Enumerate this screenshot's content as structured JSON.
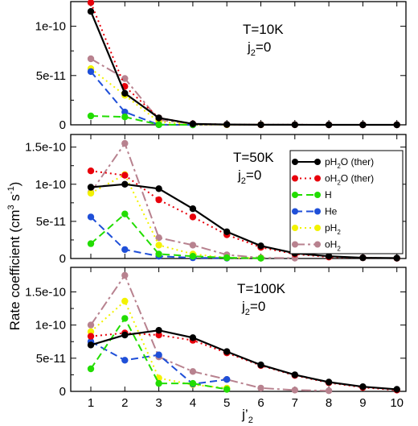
{
  "figure": {
    "ylabel": "Rate coefficient (cm³ s⁻¹)",
    "ylabel_parts": [
      "Rate coefficient (cm",
      "3",
      " s",
      "-1",
      ")"
    ],
    "xlabel_main": "j’",
    "xlabel_sub": "2",
    "legend": [
      {
        "main": "pH",
        "sub": "2",
        "rest": "O (ther)"
      },
      {
        "main": "oH",
        "sub": "2",
        "rest": "O (ther)"
      },
      {
        "main": "H",
        "sub": "",
        "rest": ""
      },
      {
        "main": "He",
        "sub": "",
        "rest": ""
      },
      {
        "main": "pH",
        "sub": "2",
        "rest": ""
      },
      {
        "main": "oH",
        "sub": "2",
        "rest": ""
      }
    ]
  },
  "chart_data": [
    {
      "type": "line",
      "annotation": [
        "T=10K",
        "j",
        "2",
        "=0"
      ],
      "x": [
        1,
        2,
        3,
        4,
        5,
        6,
        7,
        8,
        9,
        10
      ],
      "xticks": [
        "1",
        "2",
        "3",
        "4",
        "5",
        "6",
        "7",
        "8",
        "9",
        "10"
      ],
      "yticks": [
        "0",
        "5e-11",
        "1e-10"
      ],
      "ytick_values": [
        0,
        5e-11,
        1e-10
      ],
      "ylim": [
        0,
        1.25e-10
      ],
      "series": [
        {
          "name": "pH2O (ther)",
          "color": "#000000",
          "style": "solid",
          "values": [
            1.15e-10,
            3.2e-11,
            7e-12,
            1e-12,
            3e-13,
            1e-13,
            5e-14,
            2e-14,
            1e-14,
            5e-15
          ]
        },
        {
          "name": "oH2O (ther)",
          "color": "#e8000b",
          "style": "dotted",
          "values": [
            1.24e-10,
            3.9e-11,
            7e-12,
            1e-12,
            3e-13,
            1e-13,
            5e-14,
            2e-14,
            1e-14,
            5e-15
          ]
        },
        {
          "name": "H",
          "color": "#22dd00",
          "style": "dashed",
          "values": [
            9e-12,
            8e-12,
            2e-13,
            1e-14,
            null,
            null,
            null,
            null,
            null,
            null
          ]
        },
        {
          "name": "He",
          "color": "#1f4fd8",
          "style": "dashed",
          "values": [
            5.4e-11,
            1.3e-11,
            1e-13,
            1e-14,
            null,
            null,
            null,
            null,
            null,
            null
          ]
        },
        {
          "name": "pH2",
          "color": "#f2f200",
          "style": "dotted",
          "values": [
            5.7e-11,
            3e-11,
            3e-12,
            5e-13,
            1e-13,
            5e-14,
            null,
            null,
            null,
            null
          ]
        },
        {
          "name": "oH2",
          "color": "#b8828f",
          "style": "dashdot",
          "values": [
            6.7e-11,
            4.7e-11,
            5e-12,
            1e-12,
            2e-13,
            5e-14,
            null,
            null,
            null,
            null
          ]
        }
      ]
    },
    {
      "type": "line",
      "annotation": [
        "T=50K",
        "j",
        "2",
        "=0"
      ],
      "x": [
        1,
        2,
        3,
        4,
        5,
        6,
        7,
        8,
        9,
        10
      ],
      "xticks": [
        "1",
        "2",
        "3",
        "4",
        "5",
        "6",
        "7",
        "8",
        "9",
        "10"
      ],
      "yticks": [
        "0",
        "5e-11",
        "1e-10",
        "1.5e-10"
      ],
      "ytick_values": [
        0,
        5e-11,
        1e-10,
        1.5e-10
      ],
      "ylim": [
        0,
        1.67e-10
      ],
      "series": [
        {
          "name": "pH2O (ther)",
          "color": "#000000",
          "style": "solid",
          "values": [
            9.6e-11,
            1e-10,
            9.4e-11,
            6.7e-11,
            3.6e-11,
            1.7e-11,
            7e-12,
            3e-12,
            1e-12,
            5e-13
          ]
        },
        {
          "name": "oH2O (ther)",
          "color": "#e8000b",
          "style": "dotted",
          "values": [
            1.18e-10,
            1.12e-10,
            7.9e-11,
            5.6e-11,
            3.2e-11,
            1.5e-11,
            6e-12,
            2e-12,
            1e-12,
            3e-13
          ]
        },
        {
          "name": "H",
          "color": "#22dd00",
          "style": "dashed",
          "values": [
            2e-11,
            6e-11,
            6e-12,
            3e-12,
            1e-12,
            3e-13,
            null,
            null,
            null,
            null
          ]
        },
        {
          "name": "He",
          "color": "#1f4fd8",
          "style": "dashed",
          "values": [
            5.6e-11,
            1.2e-11,
            3e-12,
            1e-12,
            5e-13,
            null,
            null,
            null,
            null,
            null
          ]
        },
        {
          "name": "pH2",
          "color": "#f2f200",
          "style": "dotted",
          "values": [
            8.8e-11,
            1.13e-10,
            1.8e-11,
            6e-12,
            1e-12,
            5e-13,
            null,
            null,
            null,
            null
          ]
        },
        {
          "name": "oH2",
          "color": "#b8828f",
          "style": "dashdot",
          "values": [
            8.9e-11,
            1.55e-10,
            2.8e-11,
            1.8e-11,
            5e-12,
            1e-12,
            5e-13,
            null,
            null,
            null
          ]
        }
      ]
    },
    {
      "type": "line",
      "annotation": [
        "T=100K",
        "j",
        "2",
        "=0"
      ],
      "x": [
        1,
        2,
        3,
        4,
        5,
        6,
        7,
        8,
        9,
        10
      ],
      "xticks": [
        "1",
        "2",
        "3",
        "4",
        "5",
        "6",
        "7",
        "8",
        "9",
        "10"
      ],
      "yticks": [
        "0",
        "5e-11",
        "1e-10",
        "1.5e-10"
      ],
      "ytick_values": [
        0,
        5e-11,
        1e-10,
        1.5e-10
      ],
      "ylim": [
        0,
        1.87e-10
      ],
      "series": [
        {
          "name": "pH2O (ther)",
          "color": "#000000",
          "style": "solid",
          "values": [
            7e-11,
            8.5e-11,
            9.2e-11,
            8.1e-11,
            6e-11,
            4e-11,
            2.5e-11,
            1.4e-11,
            7e-12,
            3e-12
          ]
        },
        {
          "name": "oH2O (ther)",
          "color": "#e8000b",
          "style": "dotted",
          "values": [
            8.3e-11,
            8.8e-11,
            8.5e-11,
            7.7e-11,
            5.8e-11,
            3.9e-11,
            2.4e-11,
            1.3e-11,
            6e-12,
            2e-12
          ]
        },
        {
          "name": "H",
          "color": "#22dd00",
          "style": "dashed",
          "values": [
            3.4e-11,
            1.1e-10,
            1.2e-11,
            1.2e-11,
            3e-12,
            null,
            null,
            null,
            null,
            null
          ]
        },
        {
          "name": "He",
          "color": "#1f4fd8",
          "style": "dashed",
          "values": [
            7.5e-11,
            4.7e-11,
            5.5e-11,
            1.1e-11,
            1.8e-11,
            null,
            null,
            null,
            null,
            null
          ]
        },
        {
          "name": "pH2",
          "color": "#f2f200",
          "style": "dotted",
          "values": [
            9e-11,
            1.36e-10,
            2e-11,
            1e-11,
            5e-12,
            null,
            null,
            null,
            null,
            null
          ]
        },
        {
          "name": "oH2",
          "color": "#b8828f",
          "style": "dashdot",
          "values": [
            1e-10,
            1.75e-10,
            5.2e-11,
            3e-11,
            1.8e-11,
            5e-12,
            2e-12,
            1e-12,
            null,
            null
          ]
        }
      ]
    }
  ]
}
